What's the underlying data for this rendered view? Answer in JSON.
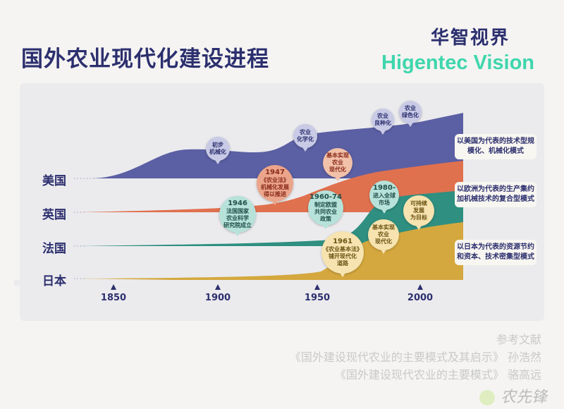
{
  "title": "国外农业现代化建设进程",
  "brand": {
    "cn": "华智视界",
    "en": "Higentec Vision",
    "accent": "#3fd6ad"
  },
  "countries": [
    {
      "name": "美国",
      "color": "#5b5fa3"
    },
    {
      "name": "英国",
      "color": "#e0714f"
    },
    {
      "name": "法国",
      "color": "#2f8f80"
    },
    {
      "name": "日本",
      "color": "#d4a83e"
    }
  ],
  "axis_ticks": [
    "1850",
    "1900",
    "1950",
    "2000"
  ],
  "milestones": {
    "us": [
      {
        "lines": [
          "初步",
          "机械化"
        ]
      },
      {
        "lines": [
          "农业",
          "化学化"
        ]
      },
      {
        "lines": [
          "农业",
          "良种化"
        ]
      },
      {
        "lines": [
          "农业",
          "绿色化"
        ]
      }
    ],
    "uk": [
      {
        "year": "1947",
        "lines": [
          "《农业法》",
          "机械化发展",
          "得以推进"
        ]
      },
      {
        "lines": [
          "基本实现",
          "农业",
          "现代化"
        ]
      }
    ],
    "fr": [
      {
        "year": "1946",
        "lines": [
          "法国国家",
          "农业科学",
          "研究院成立"
        ]
      },
      {
        "year": "1960-74",
        "lines": [
          "制定欧盟",
          "共同农业",
          "政策"
        ]
      },
      {
        "year": "1980-",
        "lines": [
          "进入全球",
          "市场"
        ]
      }
    ],
    "jp": [
      {
        "year": "1961",
        "lines": [
          "《农业基本法》",
          "铺开现代化",
          "道路"
        ]
      },
      {
        "lines": [
          "基本实现",
          "农业",
          "现代化"
        ]
      },
      {
        "lines": [
          "可持续",
          "发展",
          "为目标"
        ]
      }
    ]
  },
  "descriptions": [
    "以美国为代表的技术型规模化、机械化模式",
    "以欧洲为代表的生产集约加机械技术的复合型模式",
    "以日本为代表的资源节约和资本、技术密集型模式"
  ],
  "references": {
    "heading": "参考文献",
    "items": [
      "《国外建设现代农业的主要模式及其启示》 孙浩然",
      "《国外建设现代农业的主要模式》 骆高远"
    ]
  },
  "watermark": "农先锋"
}
